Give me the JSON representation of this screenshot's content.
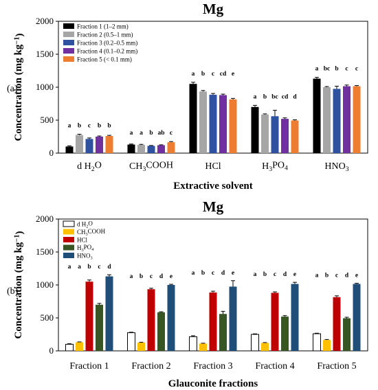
{
  "chart_data": [
    {
      "type": "bar",
      "panel_label": "(a)",
      "title": "Mg",
      "xlabel": "Extractive solvent",
      "ylabel": "Concentration (mg kg⁻¹)",
      "ylim": [
        0,
        2000
      ],
      "yticks": [
        0,
        500,
        1000,
        1500,
        2000
      ],
      "categories": [
        "d H₂O",
        "CH₃COOH",
        "HCl",
        "H₃PO₄",
        "HNO₃"
      ],
      "legend_position": "top-left",
      "series": [
        {
          "name": "Fraction 1 (1–2 mm)",
          "color": "#000000",
          "values": [
            100,
            130,
            1050,
            700,
            1130
          ],
          "errors": [
            10,
            8,
            25,
            25,
            20
          ],
          "letters": [
            "a",
            "a",
            "a",
            "a",
            "a"
          ]
        },
        {
          "name": "Fraction 2 (0.5–1 mm)",
          "color": "#a6a6a6",
          "values": [
            275,
            125,
            935,
            585,
            1000
          ],
          "errors": [
            12,
            8,
            15,
            10,
            10
          ],
          "letters": [
            "b",
            "a",
            "b",
            "b",
            "bc"
          ]
        },
        {
          "name": "Fraction 3 (0.2–0.5 mm)",
          "color": "#2f52a0",
          "values": [
            215,
            110,
            885,
            560,
            975
          ],
          "errors": [
            15,
            6,
            20,
            90,
            40
          ],
          "letters": [
            "c",
            "b",
            "c",
            "bc",
            "b"
          ]
        },
        {
          "name": "Fraction 4 (0.1–0.2 mm)",
          "color": "#7030a0",
          "values": [
            250,
            120,
            880,
            520,
            1015
          ],
          "errors": [
            10,
            6,
            15,
            15,
            18
          ],
          "letters": [
            "b",
            "ab",
            "cd",
            "cd",
            "c"
          ]
        },
        {
          "name": "Fraction 5 (< 0.1 mm)",
          "color": "#ed7d31",
          "values": [
            260,
            165,
            815,
            495,
            1015
          ],
          "errors": [
            10,
            10,
            15,
            10,
            10
          ],
          "letters": [
            "b",
            "c",
            "e",
            "d",
            "c"
          ]
        }
      ]
    },
    {
      "type": "bar",
      "panel_label": "(b)",
      "title": "Mg",
      "xlabel": "Glauconite fractions",
      "ylabel": "Concentration (mg kg⁻¹)",
      "ylim": [
        0,
        2000
      ],
      "yticks": [
        0,
        500,
        1000,
        1500,
        2000
      ],
      "categories": [
        "Fraction 1",
        "Fraction 2",
        "Fraction 3",
        "Fraction 4",
        "Fraction 5"
      ],
      "legend_position": "top-left",
      "series": [
        {
          "name": "d H₂O",
          "color": "#ffffff",
          "values": [
            100,
            275,
            215,
            250,
            260
          ],
          "errors": [
            8,
            8,
            15,
            8,
            8
          ]
        },
        {
          "name": "CH₃COOH",
          "color": "#ffc000",
          "values": [
            130,
            125,
            110,
            120,
            165
          ],
          "errors": [
            6,
            6,
            6,
            6,
            8
          ]
        },
        {
          "name": "HCl",
          "color": "#c00000",
          "values": [
            1050,
            935,
            885,
            880,
            815
          ],
          "errors": [
            25,
            15,
            20,
            15,
            20
          ]
        },
        {
          "name": "H₃PO₄",
          "color": "#375623",
          "values": [
            700,
            585,
            560,
            520,
            495
          ],
          "errors": [
            20,
            8,
            40,
            15,
            15
          ]
        },
        {
          "name": "HNO₃",
          "color": "#1f4e79",
          "values": [
            1130,
            1000,
            975,
            1015,
            1015
          ],
          "errors": [
            25,
            10,
            90,
            25,
            10
          ]
        }
      ],
      "letters": [
        [
          "a",
          "a",
          "b",
          "c",
          "d"
        ],
        [
          "a",
          "b",
          "c",
          "d",
          "e"
        ],
        [
          "a",
          "b",
          "c",
          "d",
          "e"
        ],
        [
          "a",
          "b",
          "c",
          "d",
          "e"
        ],
        [
          "a",
          "b",
          "c",
          "d",
          "e"
        ]
      ]
    }
  ]
}
